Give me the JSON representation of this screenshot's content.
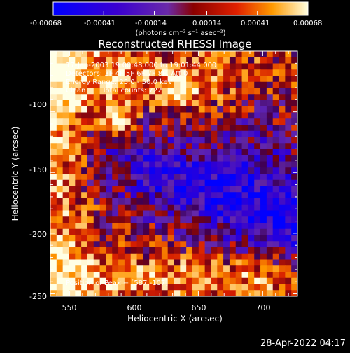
{
  "colorbar": {
    "tick_labels": [
      "-0.00068",
      "-0.00041",
      "-0.00014",
      "0.00014",
      "0.00041",
      "0.00068"
    ],
    "unit_label": "(photons cm⁻² s⁻¹ asec⁻²)",
    "range": [
      -0.00068,
      0.00068
    ]
  },
  "chart_data": {
    "type": "heatmap",
    "title": "Reconstructed RHESSI Image",
    "xlabel": "Heliocentric X (arcsec)",
    "ylabel": "Heliocentric Y (arcsec)",
    "xlim": [
      535,
      727
    ],
    "ylim": [
      -252,
      -50
    ],
    "x_ticks": [
      "550",
      "600",
      "650",
      "700"
    ],
    "x_tick_values": [
      550,
      600,
      650,
      700
    ],
    "y_ticks": [
      "-100",
      "-150",
      "-200",
      "-250"
    ],
    "y_tick_values": [
      -100,
      -150,
      -200,
      -250
    ],
    "annotations": {
      "line1": "17-Jan-2003 19:00:48.000 to 19:01:44.000",
      "line2": "Detectors: 3F 4F 5F 6F 7F 8F, Att 0",
      "line3": "Energy Range: 25.0 - 50.0 keV",
      "line4_left": "Clean",
      "line4_right": "Total counts: 722",
      "peak": "Position of Peak = [587,-107]"
    },
    "peak_position": [
      587,
      -107
    ]
  },
  "footer": {
    "timestamp": "28-Apr-2022 04:17"
  }
}
